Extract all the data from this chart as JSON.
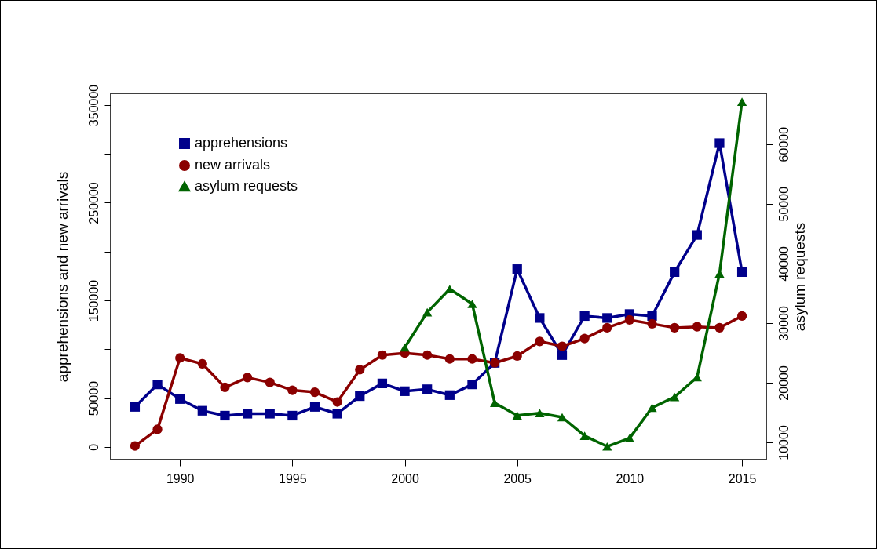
{
  "chart_data": {
    "type": "line",
    "ylabel": "apprehensions and new arrivals",
    "y2label": "asylum requests",
    "x": [
      1988,
      1989,
      1990,
      1991,
      1992,
      1993,
      1994,
      1995,
      1996,
      1997,
      1998,
      1999,
      2000,
      2001,
      2002,
      2003,
      2004,
      2005,
      2006,
      2007,
      2008,
      2009,
      2010,
      2011,
      2012,
      2013,
      2014,
      2015
    ],
    "series": [
      {
        "name": "apprehensions",
        "color": "#00008b",
        "marker": "square",
        "values": [
          41000,
          64000,
          49000,
          37000,
          32000,
          34000,
          34000,
          32000,
          41000,
          34000,
          52000,
          65000,
          57000,
          59000,
          53000,
          64000,
          86000,
          182000,
          132000,
          94000,
          134000,
          132000,
          136000,
          134000,
          179000,
          217000,
          311000,
          179000
        ]
      },
      {
        "name": "new arrivals",
        "color": "#8b0000",
        "marker": "circle",
        "values": [
          1000,
          18000,
          91000,
          85000,
          61000,
          71000,
          66000,
          58000,
          56000,
          46000,
          79000,
          94000,
          96000,
          94000,
          90000,
          90000,
          86000,
          93000,
          108000,
          103000,
          111000,
          122000,
          130000,
          126000,
          122000,
          123000,
          122000,
          134000
        ]
      },
      {
        "name": "asylum requests",
        "color": "#006400",
        "marker": "triangle",
        "axis": "y2",
        "x": [
          2000,
          2001,
          2002,
          2003,
          2004,
          2005,
          2006,
          2007,
          2008,
          2009,
          2010,
          2011,
          2012,
          2013,
          2014,
          2015
        ],
        "values": [
          25900,
          31800,
          35700,
          33200,
          16600,
          14500,
          14900,
          14200,
          11100,
          9300,
          10700,
          15800,
          17600,
          20900,
          38300,
          67100
        ]
      }
    ],
    "xlim": [
      1986.92,
      2016.08
    ],
    "xticks": [
      1990,
      1995,
      2000,
      2005,
      2010,
      2015
    ],
    "ylim": [
      -13000,
      362000
    ],
    "yticks": [
      0,
      50000,
      {
        "value": 100000,
        "label": null
      },
      150000,
      {
        "value": 200000,
        "label": null
      },
      250000,
      {
        "value": 300000,
        "label": null
      },
      350000
    ],
    "y2lim": [
      7100,
      68500
    ],
    "y2ticks": [
      10000,
      20000,
      30000,
      40000,
      50000,
      60000
    ],
    "grid": false,
    "legend": "top left"
  }
}
